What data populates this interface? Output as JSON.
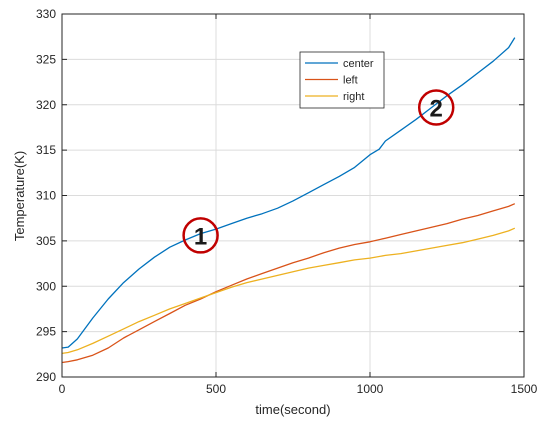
{
  "chart_data": {
    "type": "line",
    "xlabel": "time(second)",
    "ylabel": "Temperature(K)",
    "xlim": [
      0,
      1500
    ],
    "ylim": [
      290,
      330
    ],
    "xticks": [
      "0",
      "500",
      "1000",
      "1500"
    ],
    "yticks": [
      "290",
      "295",
      "300",
      "305",
      "310",
      "315",
      "320",
      "325",
      "330"
    ],
    "xtick_values": [
      0,
      500,
      1000,
      1500
    ],
    "ytick_values": [
      290,
      295,
      300,
      305,
      310,
      315,
      320,
      325,
      330
    ],
    "grid": true,
    "legend_position": "top-center",
    "series": [
      {
        "name": "center",
        "color": "#0072BD",
        "x": [
          0,
          20,
          50,
          100,
          150,
          200,
          250,
          300,
          350,
          400,
          450,
          500,
          550,
          600,
          650,
          700,
          750,
          800,
          850,
          900,
          950,
          1000,
          1030,
          1050,
          1100,
          1150,
          1200,
          1250,
          1300,
          1350,
          1400,
          1450,
          1470
        ],
        "y": [
          293.2,
          293.3,
          294.2,
          296.5,
          298.6,
          300.4,
          301.9,
          303.2,
          304.3,
          305.1,
          305.8,
          306.3,
          306.9,
          307.5,
          308.0,
          308.6,
          309.4,
          310.3,
          311.2,
          312.1,
          313.1,
          314.5,
          315.1,
          316.0,
          317.2,
          318.4,
          319.7,
          321.0,
          322.2,
          323.5,
          324.8,
          326.3,
          327.4
        ]
      },
      {
        "name": "left",
        "color": "#D95319",
        "x": [
          0,
          20,
          50,
          100,
          150,
          200,
          250,
          300,
          350,
          400,
          450,
          500,
          550,
          600,
          650,
          700,
          750,
          800,
          850,
          900,
          950,
          1000,
          1050,
          1100,
          1150,
          1200,
          1250,
          1300,
          1350,
          1400,
          1450,
          1470
        ],
        "y": [
          291.6,
          291.7,
          291.9,
          292.4,
          293.2,
          294.3,
          295.2,
          296.1,
          297.0,
          297.9,
          298.6,
          299.4,
          300.1,
          300.8,
          301.4,
          302.0,
          302.6,
          303.1,
          303.7,
          304.2,
          304.6,
          304.9,
          305.3,
          305.7,
          306.1,
          306.5,
          306.9,
          307.4,
          307.8,
          308.3,
          308.8,
          309.1
        ]
      },
      {
        "name": "right",
        "color": "#EDB120",
        "x": [
          0,
          20,
          50,
          100,
          150,
          200,
          250,
          300,
          350,
          400,
          450,
          500,
          550,
          600,
          650,
          700,
          750,
          800,
          850,
          900,
          950,
          1000,
          1050,
          1100,
          1150,
          1200,
          1250,
          1300,
          1350,
          1400,
          1450,
          1470
        ],
        "y": [
          292.6,
          292.7,
          293.0,
          293.7,
          294.5,
          295.3,
          296.1,
          296.8,
          297.5,
          298.1,
          298.7,
          299.3,
          299.9,
          300.4,
          300.8,
          301.2,
          301.6,
          302.0,
          302.3,
          302.6,
          302.9,
          303.1,
          303.4,
          303.6,
          303.9,
          304.2,
          304.5,
          304.8,
          305.2,
          305.6,
          306.1,
          306.4
        ]
      }
    ],
    "annotations": [
      {
        "label": "1",
        "x": 450,
        "y": 305.6,
        "color": "#C00000"
      },
      {
        "label": "2",
        "x": 1215,
        "y": 319.7,
        "color": "#C00000"
      }
    ]
  }
}
